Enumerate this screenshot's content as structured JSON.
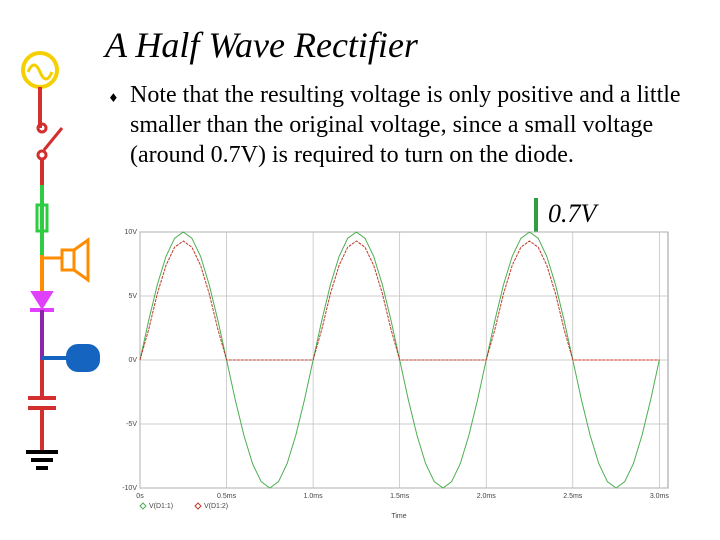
{
  "slide": {
    "title": "A Half Wave Rectifier",
    "bullet": "Note that the resulting voltage is only positive and a little smaller than the original voltage, since a small voltage (around 0.7V) is required to turn on the diode.",
    "annotation": "0.7V"
  },
  "chart_data": {
    "type": "line",
    "x_label": "Time",
    "x": [
      0,
      0.05,
      0.1,
      0.15,
      0.2,
      0.25,
      0.3,
      0.35,
      0.4,
      0.45,
      0.5,
      0.55,
      0.6,
      0.65,
      0.7,
      0.75,
      0.8,
      0.85,
      0.9,
      0.95,
      1,
      1.05,
      1.1,
      1.15,
      1.2,
      1.25,
      1.3,
      1.35,
      1.4,
      1.45,
      1.5,
      1.55,
      1.6,
      1.65,
      1.7,
      1.75,
      1.8,
      1.85,
      1.9,
      1.95,
      2,
      2.05,
      2.1,
      2.15,
      2.2,
      2.25,
      2.3,
      2.35,
      2.4,
      2.45,
      2.5,
      2.55,
      2.6,
      2.65,
      2.7,
      2.75,
      2.8,
      2.85,
      2.9,
      2.95,
      3
    ],
    "series": [
      {
        "name": "V(D1:1)",
        "color": "#4caf50",
        "values": [
          0,
          3.09,
          5.88,
          8.09,
          9.51,
          10,
          9.51,
          8.09,
          5.88,
          3.09,
          0,
          -3.09,
          -5.88,
          -8.09,
          -9.51,
          -10,
          -9.51,
          -8.09,
          -5.88,
          -3.09,
          0,
          3.09,
          5.88,
          8.09,
          9.51,
          10,
          9.51,
          8.09,
          5.88,
          3.09,
          0,
          -3.09,
          -5.88,
          -8.09,
          -9.51,
          -10,
          -9.51,
          -8.09,
          -5.88,
          -3.09,
          0,
          3.09,
          5.88,
          8.09,
          9.51,
          10,
          9.51,
          8.09,
          5.88,
          3.09,
          0,
          -3.09,
          -5.88,
          -8.09,
          -9.51,
          -10,
          -9.51,
          -8.09,
          -5.88,
          -3.09,
          0
        ]
      },
      {
        "name": "V(D1:2)",
        "color": "#c0392b",
        "values": [
          0,
          2.39,
          5.18,
          7.39,
          8.81,
          9.3,
          8.81,
          7.39,
          5.18,
          2.39,
          0,
          0,
          0,
          0,
          0,
          0,
          0,
          0,
          0,
          0,
          0,
          2.39,
          5.18,
          7.39,
          8.81,
          9.3,
          8.81,
          7.39,
          5.18,
          2.39,
          0,
          0,
          0,
          0,
          0,
          0,
          0,
          0,
          0,
          0,
          0,
          2.39,
          5.18,
          7.39,
          8.81,
          9.3,
          8.81,
          7.39,
          5.18,
          2.39,
          0,
          0,
          0,
          0,
          0,
          0,
          0,
          0,
          0,
          0,
          0
        ]
      }
    ],
    "xlim": [
      0,
      3.05
    ],
    "xticks": [
      {
        "value": 0,
        "label": "0s"
      },
      {
        "value": 0.5,
        "label": "0.5ms"
      },
      {
        "value": 1,
        "label": "1.0ms"
      },
      {
        "value": 1.5,
        "label": "1.5ms"
      },
      {
        "value": 2,
        "label": "2.0ms"
      },
      {
        "value": 2.5,
        "label": "2.5ms"
      },
      {
        "value": 3,
        "label": "3.0ms"
      }
    ],
    "ylim": [
      -10,
      10
    ],
    "yticks": [
      {
        "value": -10,
        "label": "-10V"
      },
      {
        "value": -5,
        "label": "-5V"
      },
      {
        "value": 0,
        "label": "0V"
      },
      {
        "value": 5,
        "label": "5V"
      },
      {
        "value": 10,
        "label": "10V"
      }
    ],
    "grid": true
  }
}
